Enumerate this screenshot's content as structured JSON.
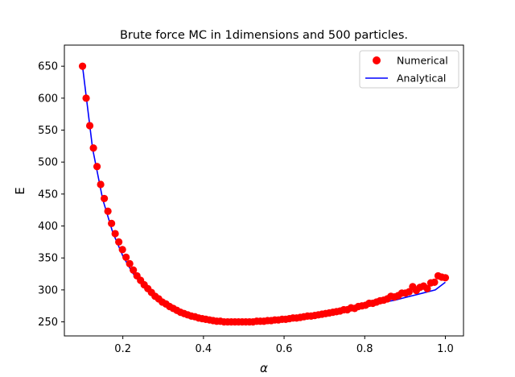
{
  "chart_data": {
    "type": "scatter",
    "title": "Brute force MC in 1dimensions and 500 particles.",
    "xlabel": "α",
    "ylabel": "E",
    "xlim": [
      0.055,
      1.045
    ],
    "ylim": [
      228,
      683
    ],
    "xticks": [
      0.2,
      0.4,
      0.6,
      0.8,
      1.0
    ],
    "xtick_labels": [
      "0.2",
      "0.4",
      "0.6",
      "0.8",
      "1.0"
    ],
    "yticks": [
      250,
      300,
      350,
      400,
      450,
      500,
      550,
      600,
      650
    ],
    "ytick_labels": [
      "250",
      "300",
      "350",
      "400",
      "450",
      "500",
      "550",
      "600",
      "650"
    ],
    "grid": false,
    "legend_position": "top-right",
    "colors": {
      "numerical": "#ff0000",
      "analytical": "#0000ff"
    },
    "series": [
      {
        "name": "Numerical",
        "style": "markers",
        "x": [
          0.1,
          0.109,
          0.118,
          0.127,
          0.136,
          0.145,
          0.154,
          0.163,
          0.172,
          0.181,
          0.19,
          0.199,
          0.208,
          0.217,
          0.226,
          0.235,
          0.244,
          0.253,
          0.262,
          0.271,
          0.28,
          0.289,
          0.298,
          0.307,
          0.316,
          0.325,
          0.334,
          0.343,
          0.352,
          0.361,
          0.37,
          0.379,
          0.388,
          0.397,
          0.406,
          0.415,
          0.424,
          0.433,
          0.442,
          0.451,
          0.46,
          0.469,
          0.478,
          0.487,
          0.496,
          0.505,
          0.514,
          0.523,
          0.532,
          0.541,
          0.55,
          0.559,
          0.568,
          0.577,
          0.586,
          0.595,
          0.604,
          0.613,
          0.622,
          0.631,
          0.64,
          0.649,
          0.658,
          0.667,
          0.676,
          0.685,
          0.694,
          0.703,
          0.712,
          0.721,
          0.73,
          0.739,
          0.748,
          0.757,
          0.766,
          0.775,
          0.784,
          0.793,
          0.802,
          0.811,
          0.82,
          0.829,
          0.838,
          0.847,
          0.856,
          0.865,
          0.874,
          0.883,
          0.892,
          0.901,
          0.91,
          0.919,
          0.928,
          0.937,
          0.946,
          0.955,
          0.964,
          0.973,
          0.982,
          0.991,
          1.0
        ],
        "y": [
          650,
          600,
          557,
          522,
          493,
          465,
          443,
          423,
          404,
          388,
          375,
          363,
          351,
          341,
          331,
          322,
          315,
          308,
          302,
          296,
          290,
          286,
          281,
          278,
          274,
          271,
          268,
          265,
          263,
          261,
          259,
          258,
          256,
          255,
          254,
          253,
          252,
          251,
          251,
          250,
          250,
          250,
          250,
          250,
          250,
          250,
          250,
          250,
          251,
          251,
          251,
          252,
          252,
          253,
          253,
          254,
          254,
          255,
          256,
          256,
          257,
          258,
          259,
          259,
          260,
          261,
          262,
          263,
          264,
          265,
          266,
          267,
          269,
          269,
          272,
          271,
          274,
          275,
          276,
          279,
          279,
          281,
          283,
          284,
          286,
          290,
          289,
          291,
          295,
          295,
          297,
          305,
          299,
          304,
          306,
          302,
          311,
          312,
          322,
          320,
          319
        ]
      },
      {
        "name": "Analytical",
        "style": "line",
        "x": [
          0.1,
          0.125,
          0.15,
          0.175,
          0.2,
          0.225,
          0.25,
          0.275,
          0.3,
          0.325,
          0.35,
          0.375,
          0.4,
          0.425,
          0.45,
          0.475,
          0.5,
          0.525,
          0.55,
          0.575,
          0.6,
          0.625,
          0.65,
          0.675,
          0.7,
          0.725,
          0.75,
          0.775,
          0.8,
          0.825,
          0.85,
          0.875,
          0.9,
          0.925,
          0.95,
          0.975,
          1.0
        ],
        "y": [
          650,
          521,
          442,
          390,
          353,
          326,
          306,
          291,
          280,
          271,
          264,
          259,
          255,
          252,
          251,
          250,
          250,
          250,
          251,
          252,
          254,
          256,
          258,
          260,
          262,
          265,
          268,
          271,
          274,
          277,
          281,
          284,
          288,
          292,
          296,
          300,
          312
        ]
      }
    ]
  }
}
